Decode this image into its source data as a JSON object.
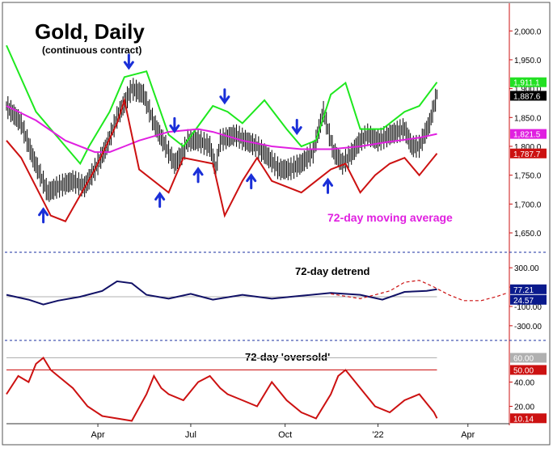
{
  "title": "Gold, Daily",
  "subtitle": "(continuous contract)",
  "chart_data": [
    {
      "type": "line",
      "panel": "price",
      "y_ticks": [
        2000,
        1950,
        1900,
        1850,
        1800,
        1750,
        1700,
        1650
      ],
      "y_tick_labels": [
        "2,000.0",
        "1,950.0",
        "1,900.0",
        "1,850.0",
        "1,800.0",
        "1,750.0",
        "1,700.0",
        "1,650.0"
      ],
      "ylim": [
        1622,
        2048
      ],
      "x_ticks": [
        {
          "label": "Apr",
          "t": 62
        },
        {
          "label": "Jul",
          "t": 125
        },
        {
          "label": "Oct",
          "t": 189
        },
        {
          "label": "'22",
          "t": 252
        },
        {
          "label": "Apr",
          "t": 313
        }
      ],
      "xlim": [
        0,
        340
      ],
      "price_bars": {
        "name": "Gold price",
        "color": "#000000",
        "t": [
          0,
          10,
          18,
          28,
          35,
          45,
          53,
          60,
          68,
          75,
          85,
          93,
          100,
          108,
          114,
          120,
          123,
          130,
          138,
          142,
          145,
          155,
          162,
          170,
          178,
          185,
          192,
          200,
          208,
          215,
          222,
          228,
          235,
          240,
          245,
          252,
          260,
          270,
          275,
          280,
          287,
          292
        ],
        "close": [
          1870,
          1840,
          1780,
          1720,
          1730,
          1740,
          1730,
          1760,
          1800,
          1850,
          1900,
          1890,
          1840,
          1800,
          1770,
          1790,
          1810,
          1810,
          1800,
          1760,
          1810,
          1820,
          1810,
          1800,
          1780,
          1760,
          1760,
          1770,
          1790,
          1860,
          1790,
          1770,
          1790,
          1810,
          1820,
          1810,
          1820,
          1830,
          1800,
          1800,
          1840,
          1890
        ]
      },
      "lines": [
        {
          "name": "upper envelope",
          "color": "#1ee81e",
          "t": [
            0,
            20,
            40,
            50,
            56,
            70,
            80,
            95,
            110,
            120,
            140,
            150,
            160,
            175,
            190,
            200,
            210,
            220,
            230,
            240,
            255,
            270,
            280,
            292
          ],
          "value": [
            1975,
            1860,
            1800,
            1770,
            1800,
            1860,
            1920,
            1930,
            1820,
            1800,
            1870,
            1860,
            1840,
            1880,
            1830,
            1800,
            1810,
            1890,
            1910,
            1830,
            1830,
            1860,
            1870,
            1911.1
          ]
        },
        {
          "name": "72-day moving average",
          "color": "#e020e0",
          "t": [
            0,
            20,
            40,
            60,
            70,
            80,
            90,
            110,
            130,
            140,
            160,
            180,
            200,
            220,
            240,
            260,
            280,
            292
          ],
          "value": [
            1870,
            1845,
            1810,
            1790,
            1790,
            1800,
            1810,
            1825,
            1830,
            1825,
            1810,
            1800,
            1795,
            1795,
            1800,
            1808,
            1815,
            1821.5
          ]
        },
        {
          "name": "lower envelope",
          "color": "#cc1111",
          "t": [
            0,
            10,
            30,
            40,
            60,
            75,
            80,
            90,
            110,
            120,
            140,
            148,
            160,
            170,
            180,
            200,
            210,
            220,
            230,
            240,
            250,
            260,
            270,
            280,
            292
          ],
          "value": [
            1810,
            1780,
            1680,
            1670,
            1760,
            1840,
            1880,
            1760,
            1720,
            1780,
            1770,
            1680,
            1740,
            1780,
            1740,
            1720,
            1740,
            1760,
            1770,
            1720,
            1750,
            1770,
            1780,
            1750,
            1787.7
          ]
        }
      ],
      "last_values": [
        {
          "label": "1,911.1",
          "value": 1911.1,
          "bg": "#22e022",
          "fg": "#ffffff"
        },
        {
          "label": "1,887.6",
          "value": 1887.6,
          "bg": "#000000",
          "fg": "#ffffff"
        },
        {
          "label": "1,821.5",
          "value": 1821.5,
          "bg": "#e020e0",
          "fg": "#ffffff"
        },
        {
          "label": "1,787.7",
          "value": 1787.7,
          "bg": "#cc1111",
          "fg": "#ffffff"
        }
      ],
      "annotation": "72-day moving average",
      "cycle_markers": [
        {
          "direction": "up",
          "t": 25
        },
        {
          "direction": "down",
          "t": 83
        },
        {
          "direction": "up",
          "t": 104
        },
        {
          "direction": "down",
          "t": 114
        },
        {
          "direction": "up",
          "t": 130
        },
        {
          "direction": "down",
          "t": 148
        },
        {
          "direction": "up",
          "t": 166
        },
        {
          "direction": "down",
          "t": 197
        },
        {
          "direction": "up",
          "t": 218
        }
      ],
      "grid": false
    },
    {
      "type": "line",
      "panel": "detrend",
      "title": "72-day detrend",
      "y_ticks": [
        300,
        100,
        -100,
        -300
      ],
      "y_tick_labels": [
        "300.00",
        "100.00",
        "-100.00",
        "-300.00"
      ],
      "ylim": [
        -410,
        410
      ],
      "zero_line": 0,
      "lines": [
        {
          "name": "detrend",
          "color": "#111166",
          "t": [
            0,
            15,
            25,
            35,
            50,
            65,
            75,
            85,
            95,
            110,
            125,
            140,
            160,
            180,
            200,
            220,
            240,
            255,
            270,
            285,
            292
          ],
          "value": [
            20,
            -30,
            -80,
            -40,
            0,
            60,
            160,
            140,
            20,
            -20,
            30,
            -30,
            20,
            -20,
            10,
            40,
            20,
            -30,
            50,
            60,
            77.21
          ]
        },
        {
          "name": "projected cycle",
          "color": "#cc1111",
          "dashed": true,
          "t": [
            220,
            240,
            260,
            270,
            280,
            290,
            300,
            310,
            322,
            332,
            340
          ],
          "value": [
            30,
            -20,
            60,
            150,
            170,
            100,
            20,
            -40,
            -40,
            0,
            40
          ]
        }
      ],
      "last_values": [
        {
          "label": "77.21",
          "value": 77.21,
          "bg": "#0a1a8c",
          "fg": "#ffffff"
        },
        {
          "label": "24.57",
          "value": 24.57,
          "bg": "#0a1a8c",
          "fg": "#ffffff"
        }
      ]
    },
    {
      "type": "line",
      "panel": "oversold",
      "title": "72-day 'oversold'",
      "y_ticks": [
        40,
        20
      ],
      "y_tick_labels": [
        "40.00",
        "20.00"
      ],
      "ylim": [
        7,
        71
      ],
      "reference_lines": [
        {
          "value": 60,
          "label": "60.00",
          "color": "#b0b0b0"
        },
        {
          "value": 50,
          "label": "50.00",
          "color": "#cc1111"
        }
      ],
      "lines": [
        {
          "name": "oversold",
          "color": "#cc1111",
          "t": [
            0,
            8,
            15,
            20,
            25,
            30,
            35,
            45,
            55,
            65,
            75,
            85,
            95,
            100,
            105,
            110,
            120,
            130,
            138,
            145,
            150,
            160,
            170,
            180,
            190,
            200,
            210,
            220,
            225,
            230,
            240,
            250,
            260,
            270,
            280,
            290,
            292
          ],
          "value": [
            30,
            45,
            40,
            55,
            60,
            50,
            45,
            35,
            20,
            12,
            10,
            8,
            30,
            45,
            35,
            30,
            25,
            40,
            45,
            35,
            30,
            25,
            20,
            40,
            25,
            15,
            10,
            30,
            45,
            50,
            35,
            20,
            15,
            25,
            30,
            15,
            10.14
          ]
        }
      ],
      "last_values": [
        {
          "label": "10.14",
          "value": 10.14,
          "bg": "#cc1111",
          "fg": "#ffffff"
        }
      ]
    }
  ]
}
